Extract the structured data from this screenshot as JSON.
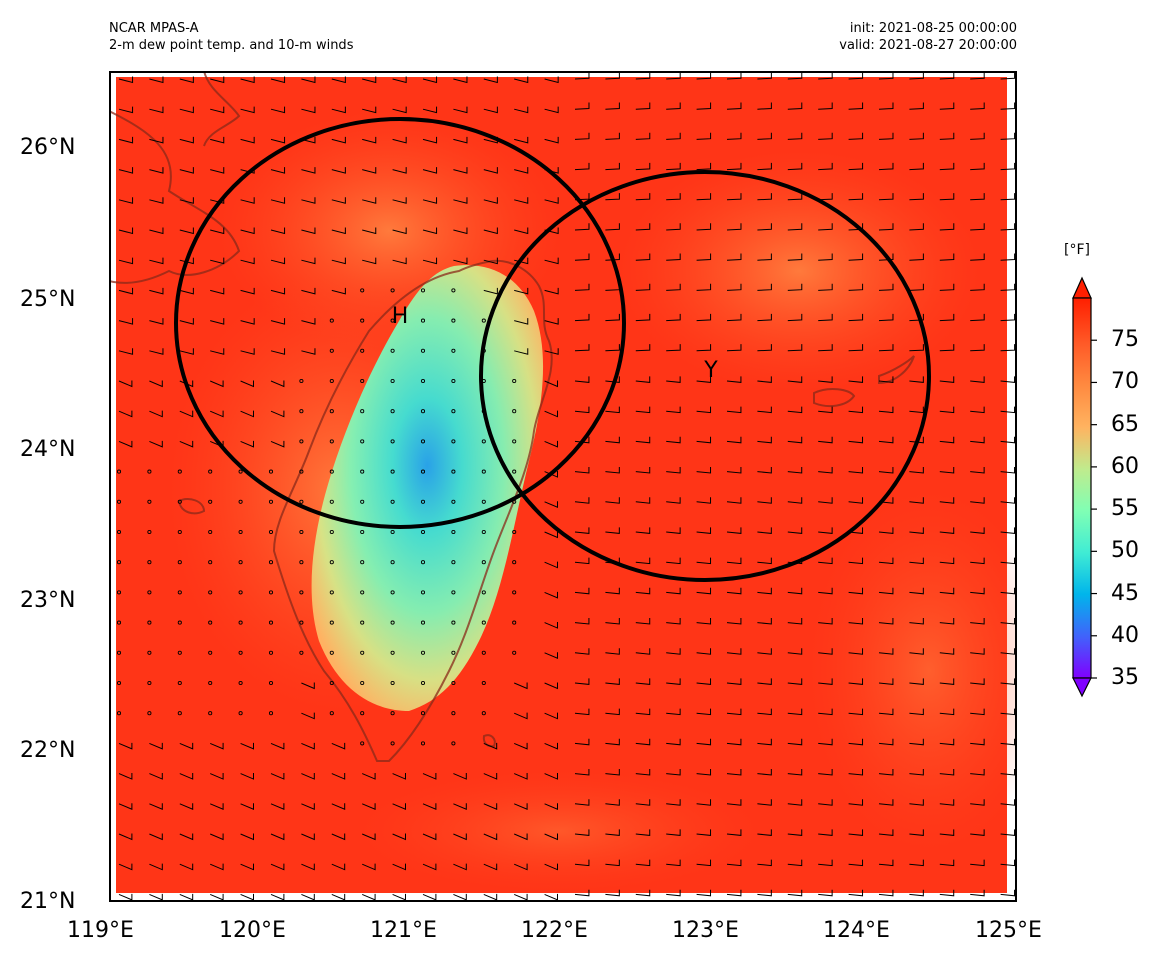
{
  "header": {
    "model": "NCAR MPAS-A",
    "field": "2-m dew point temp. and 10-m winds",
    "init": "init: 2021-08-25 00:00:00",
    "valid": "valid: 2021-08-27 20:00:00"
  },
  "map": {
    "lat_labels": [
      "26°N",
      "25°N",
      "24°N",
      "23°N",
      "22°N",
      "21°N"
    ],
    "lon_labels": [
      "119°E",
      "120°E",
      "121°E",
      "122°E",
      "123°E",
      "124°E",
      "125°E"
    ],
    "extent": {
      "lon": [
        119,
        125
      ],
      "lat": [
        21,
        26.5
      ]
    },
    "markers": [
      {
        "label": "H",
        "lon": 121.0,
        "lat": 24.9
      },
      {
        "label": "Y",
        "lon": 122.95,
        "lat": 24.5
      }
    ],
    "circles": [
      {
        "center_lon": 120.92,
        "center_lat": 24.85,
        "radius_km": 160
      },
      {
        "center_lon": 122.95,
        "center_lat": 24.5,
        "radius_km": 160
      }
    ],
    "dewpoint_field": {
      "background_min_F": 73,
      "dry_center": {
        "lon": 121.25,
        "lat": 24.4,
        "value_F": 45
      },
      "dry_band_F": 55
    }
  },
  "colorbar": {
    "units": "[°F]",
    "ticks": [
      "75",
      "70",
      "65",
      "60",
      "55",
      "50",
      "45",
      "40",
      "35"
    ],
    "range_F": [
      35,
      80
    ],
    "extend": "both",
    "colors": [
      "#8000ff",
      "#4063fb",
      "#00b5eb",
      "#40ecd4",
      "#80ffb4",
      "#c0eb8d",
      "#ffb360",
      "#ff8a40",
      "#ff5a27",
      "#ff1f00"
    ]
  }
}
